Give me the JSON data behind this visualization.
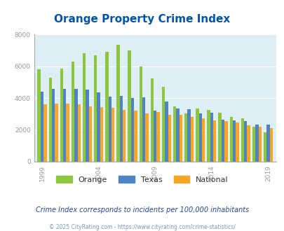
{
  "title": "Orange Property Crime Index",
  "subtitle": "Crime Index corresponds to incidents per 100,000 inhabitants",
  "copyright": "© 2025 CityRating.com - https://www.cityrating.com/crime-statistics/",
  "years": [
    1999,
    2000,
    2001,
    2002,
    2003,
    2004,
    2005,
    2006,
    2007,
    2008,
    2009,
    2010,
    2011,
    2012,
    2013,
    2014,
    2015,
    2016,
    2017,
    2018,
    2019
  ],
  "orange": [
    5800,
    5300,
    5850,
    6300,
    6850,
    6700,
    6900,
    7380,
    7000,
    6000,
    5250,
    4700,
    3500,
    3050,
    3350,
    3250,
    3100,
    2800,
    2750,
    2200,
    1850
  ],
  "texas": [
    4400,
    4600,
    4600,
    4600,
    4550,
    4350,
    4100,
    4130,
    4000,
    4050,
    3200,
    3800,
    3350,
    3300,
    3050,
    3100,
    2650,
    2600,
    2550,
    2350,
    2350
  ],
  "national": [
    3600,
    3650,
    3650,
    3600,
    3500,
    3450,
    3400,
    3280,
    3200,
    3050,
    3150,
    2950,
    2950,
    2800,
    2750,
    2600,
    2550,
    2450,
    2300,
    2200,
    2100
  ],
  "color_orange": "#8dc63f",
  "color_texas": "#4f84c4",
  "color_national": "#f5a623",
  "title_color": "#0055aa",
  "bg_color": "#ddeef5",
  "subtitle_color": "#2244aa",
  "copyright_color": "#7799bb",
  "ax_spine_color": "#aaaaaa",
  "ylim": [
    0,
    8000
  ],
  "yticks": [
    0,
    2000,
    4000,
    6000,
    8000
  ],
  "xlabel_tick_color": "#999999",
  "x_tick_years": [
    1999,
    2004,
    2009,
    2014,
    2019
  ]
}
